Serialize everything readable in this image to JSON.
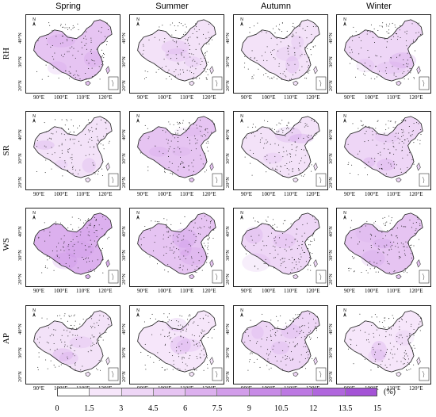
{
  "seasons": [
    "Spring",
    "Summer",
    "Autumn",
    "Winter"
  ],
  "variables": [
    "RH",
    "SR",
    "WS",
    "AP"
  ],
  "lat_labels": [
    "20°N",
    "30°N",
    "40°N"
  ],
  "lon_labels": [
    "90°E",
    "100°E",
    "110°E",
    "120°E"
  ],
  "north_arrow_label": "N",
  "colorbar": {
    "unit": "(%)",
    "ticks": [
      "0",
      "1.5",
      "3",
      "4.5",
      "6",
      "7.5",
      "9",
      "10.5",
      "12",
      "13.5",
      "15"
    ],
    "colors": [
      "#ffffff",
      "#f6e6fa",
      "#eed6f6",
      "#e6c4f2",
      "#dcb0ee",
      "#d29dea",
      "#c78ae6",
      "#bc78e2",
      "#b066dd",
      "#a453d6"
    ]
  },
  "panel_tints": {
    "RH": [
      "#e6c4f2",
      "#f3e2f8",
      "#f3e2f8",
      "#eed6f6"
    ],
    "SR": [
      "#f3e2f8",
      "#e6c4f2",
      "#f3e2f8",
      "#eed6f6"
    ],
    "WS": [
      "#dcb0ee",
      "#e6c4f2",
      "#eed6f6",
      "#e6c4f2"
    ],
    "AP": [
      "#f3e2f8",
      "#f6e6fa",
      "#eed6f6",
      "#f6e6fa"
    ]
  }
}
